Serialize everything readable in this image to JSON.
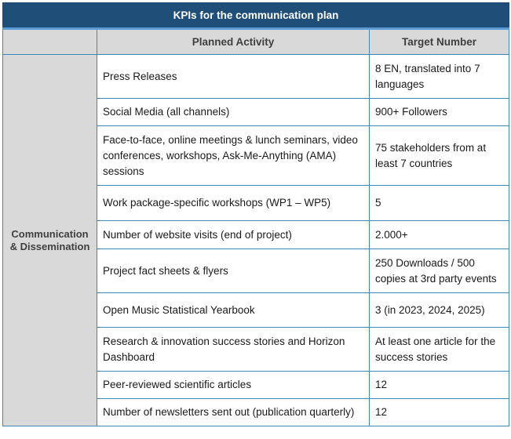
{
  "table": {
    "title": "KPIs for the communication plan",
    "headers": [
      "Planned Activity",
      "Target Number"
    ],
    "category": "Communication & Dissemination",
    "rows": [
      {
        "activity": "Press Releases",
        "target": "8 EN, translated into 7 languages"
      },
      {
        "activity": "Social Media (all channels)",
        "target": "900+ Followers"
      },
      {
        "activity": "Face-to-face, online meetings & lunch seminars, video conferences, workshops, Ask-Me-Anything (AMA) sessions",
        "target": "75 stakeholders from at least 7 countries"
      },
      {
        "activity": "Work package-specific workshops (WP1 – WP5)",
        "target": "5"
      },
      {
        "activity": "Number of website visits (end of project)",
        "target": "2.000+"
      },
      {
        "activity": "Project fact sheets & flyers",
        "target": "250 Downloads / 500 copies at 3rd party events"
      },
      {
        "activity": "Open Music Statistical Yearbook",
        "target": "3 (in 2023, 2024, 2025)"
      },
      {
        "activity": "Research & innovation success stories and Horizon Dashboard",
        "target": "At least one article for the success stories"
      },
      {
        "activity": "Peer-reviewed scientific articles",
        "target": "12"
      },
      {
        "activity": "Number of newsletters sent out (publication quarterly)",
        "target": "12"
      }
    ]
  },
  "colors": {
    "title_bg": "#1f4e79",
    "border": "#3b87b5",
    "header_bg": "#d9d9d9"
  }
}
